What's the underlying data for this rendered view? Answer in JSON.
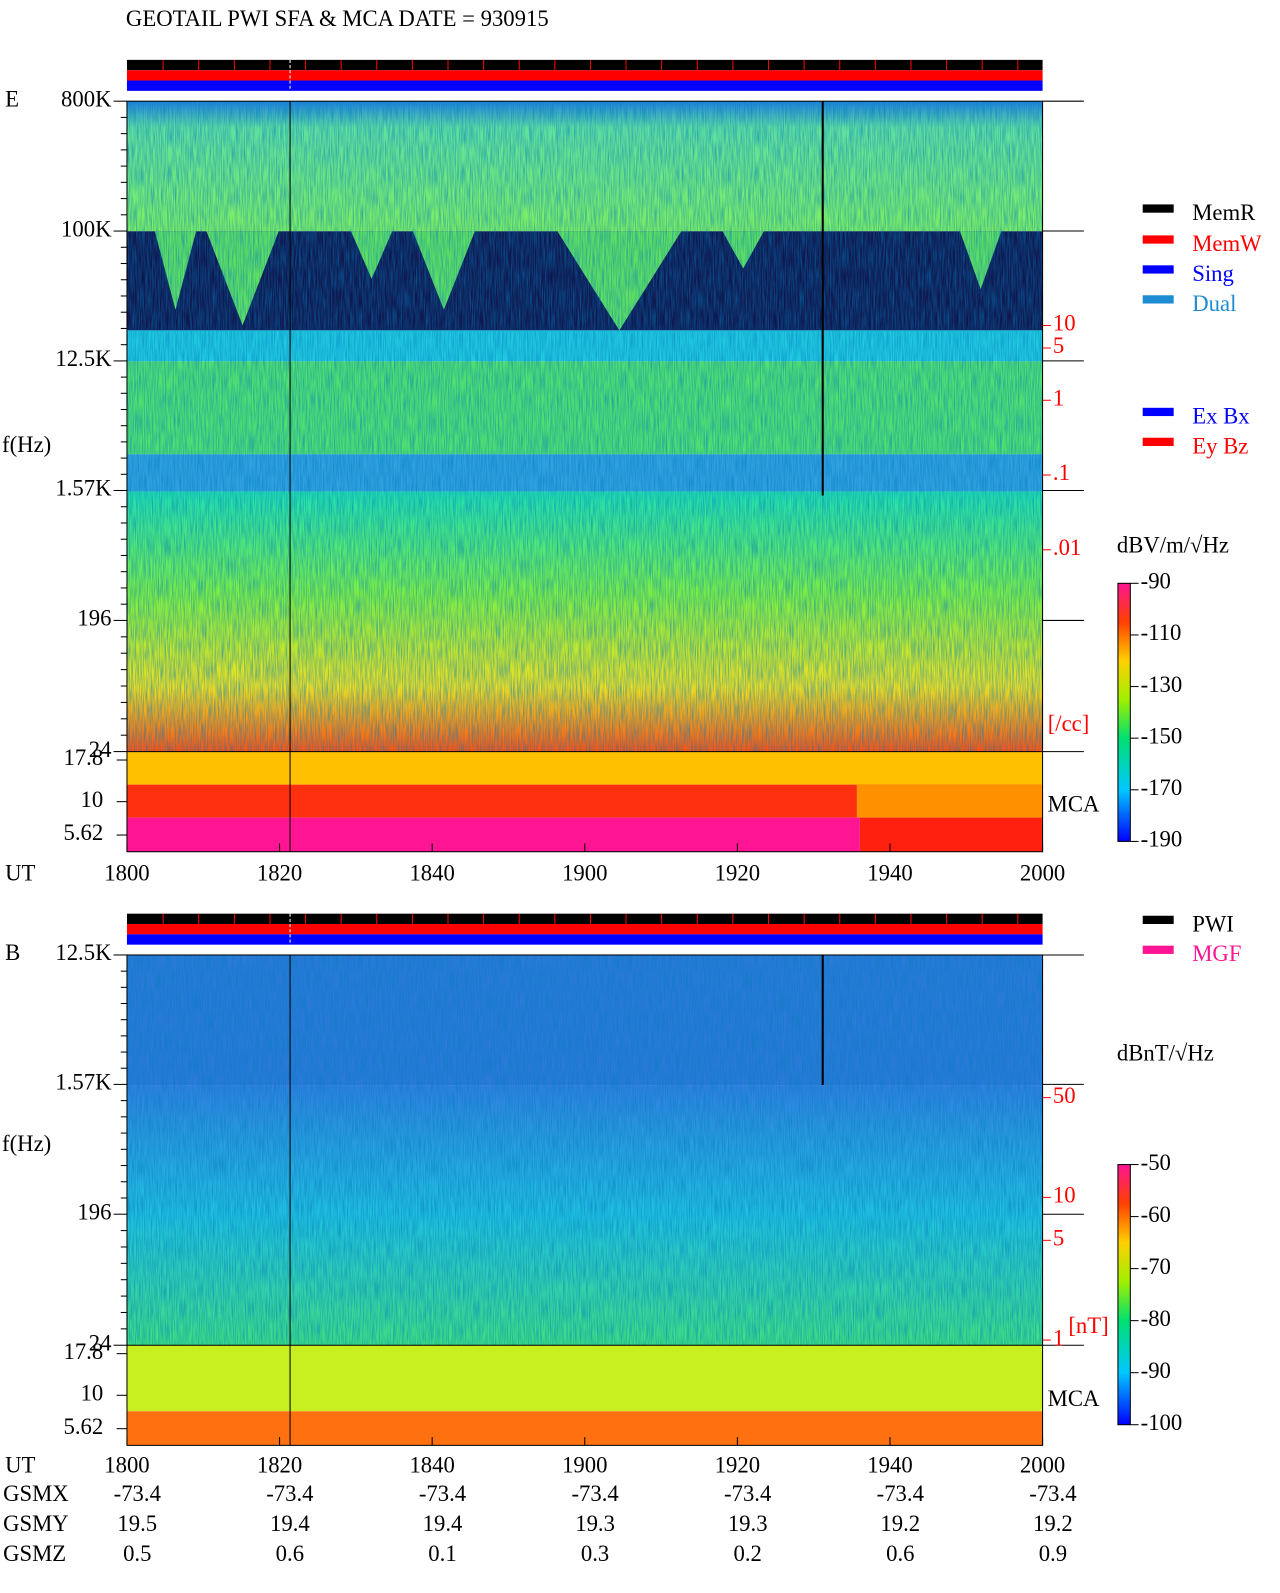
{
  "title": "GEOTAIL  PWI SFA & MCA   DATE = 930915",
  "chart_data": [
    {
      "type": "spectrogram",
      "label": "E",
      "ylabel": "f(Hz)",
      "xlabel": "UT",
      "yscale": "log",
      "ylim": [
        24,
        800000
      ],
      "yticks": [
        {
          "value": 800000,
          "label": "800K"
        },
        {
          "value": 100000,
          "label": "100K"
        },
        {
          "value": 12500,
          "label": "12.5K"
        },
        {
          "value": 1570,
          "label": "1.57K"
        },
        196,
        24
      ],
      "mca_label": "MCA",
      "mca_ticks": [
        17.8,
        10,
        5.62
      ],
      "xticks": [
        "1800",
        "1820",
        "1840",
        "1900",
        "1920",
        "1940",
        "2000"
      ],
      "y2lim": [
        2e-05,
        10000
      ],
      "y2ticks": [
        10,
        5,
        1,
        {
          "value": 0.1,
          "label": ".1"
        },
        {
          "value": 0.01,
          "label": ".01"
        }
      ],
      "y2_unit": "[/cc]",
      "colorbar": {
        "unit": "dBV/m/√Hz",
        "clim": [
          -190,
          -90
        ],
        "ticks": [
          -90,
          -110,
          -130,
          -150,
          -170,
          -190
        ]
      },
      "legend": [
        {
          "name": "MemR",
          "color": "#000000"
        },
        {
          "name": "MemW",
          "color": "#ff0000"
        },
        {
          "name": "Sing",
          "color": "#0000ff"
        },
        {
          "name": "Dual",
          "color": "#1e8cd2"
        }
      ],
      "legend2": [
        {
          "name": "Ex Bx",
          "color": "#0000ff"
        },
        {
          "name": "Ey Bz",
          "color": "#ff0000"
        }
      ]
    },
    {
      "type": "spectrogram",
      "label": "B",
      "ylabel": "f(Hz)",
      "xlabel": "UT",
      "yscale": "log",
      "ylim": [
        24,
        12500
      ],
      "yticks": [
        {
          "value": 12500,
          "label": "12.5K"
        },
        {
          "value": 1570,
          "label": "1.57K"
        },
        196,
        24
      ],
      "mca_label": "MCA",
      "mca_ticks": [
        17.8,
        10,
        5.62
      ],
      "xticks": [
        "1800",
        "1820",
        "1840",
        "1900",
        "1920",
        "1940",
        "2000"
      ],
      "y2lim": [
        0.92,
        500
      ],
      "y2ticks": [
        50,
        10,
        5,
        1
      ],
      "y2_unit": "[nT]",
      "colorbar": {
        "unit": "dBnT/√Hz",
        "clim": [
          -100,
          -50
        ],
        "ticks": [
          -50,
          -60,
          -70,
          -80,
          -90,
          -100
        ]
      },
      "legend": [
        {
          "name": "PWI",
          "color": "#000000"
        },
        {
          "name": "MGF",
          "color": "#ff1493"
        }
      ]
    }
  ],
  "orbit": {
    "rows": [
      {
        "label": "GSMX",
        "values": [
          -73.4,
          -73.4,
          -73.4,
          -73.4,
          -73.4,
          -73.4,
          -73.4
        ]
      },
      {
        "label": "GSMY",
        "values": [
          19.5,
          19.4,
          19.4,
          19.3,
          19.3,
          19.2,
          19.2
        ]
      },
      {
        "label": "GSMZ",
        "values": [
          0.5,
          0.6,
          0.1,
          0.3,
          0.2,
          0.6,
          0.9
        ]
      }
    ]
  }
}
